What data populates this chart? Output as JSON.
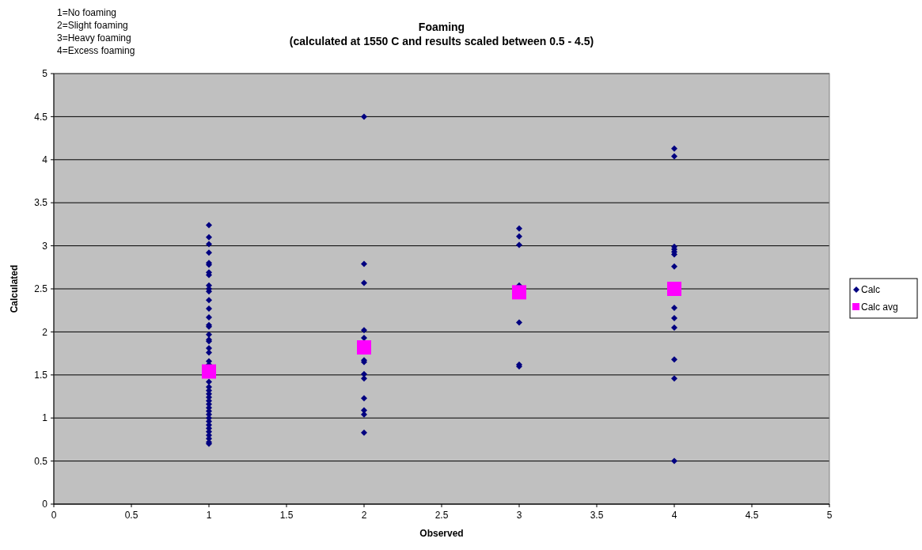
{
  "chart_data": {
    "type": "scatter",
    "title": "Foaming",
    "subtitle": "(calculated at 1550 C and results scaled between 0.5 - 4.5)",
    "xlabel": "Observed",
    "ylabel": "Calculated",
    "annotations": [
      "1=No foaming",
      "2=Slight foaming",
      "3=Heavy foaming",
      "4=Excess foaming"
    ],
    "xlim": [
      0,
      5
    ],
    "xticks": [
      0,
      0.5,
      1,
      1.5,
      2,
      2.5,
      3,
      3.5,
      4,
      4.5,
      5
    ],
    "ylim": [
      0,
      5
    ],
    "yticks": [
      0,
      0.5,
      1,
      1.5,
      2,
      2.5,
      3,
      3.5,
      4,
      4.5,
      5
    ],
    "grid": "y",
    "legend": "right",
    "series": [
      {
        "name": "Calc",
        "color": "#000080",
        "marker": "diamond",
        "x": [
          1,
          1,
          1,
          1,
          1,
          1,
          1,
          1,
          1,
          1,
          1,
          1,
          1,
          1,
          1,
          1,
          1,
          1,
          1,
          1,
          1,
          1,
          1,
          1,
          1,
          1,
          1,
          1,
          1,
          1,
          1,
          1,
          1,
          1,
          1,
          1,
          1,
          1,
          1,
          1,
          1,
          1,
          2,
          2,
          2,
          2,
          2,
          2,
          2,
          2,
          2,
          2,
          2,
          2,
          2,
          3,
          3,
          3,
          3,
          3,
          3,
          3,
          4,
          4,
          4,
          4,
          4,
          4,
          4,
          4,
          4,
          4,
          4,
          4,
          4
        ],
        "values": [
          3.24,
          3.1,
          3.02,
          2.92,
          2.8,
          2.78,
          2.69,
          2.66,
          2.54,
          2.5,
          2.47,
          2.37,
          2.27,
          2.17,
          2.08,
          2.06,
          1.97,
          1.91,
          1.89,
          1.81,
          1.76,
          1.66,
          1.62,
          1.42,
          1.36,
          1.32,
          1.28,
          1.24,
          1.2,
          1.16,
          1.12,
          1.08,
          1.04,
          1,
          0.96,
          0.92,
          0.88,
          0.84,
          0.8,
          0.76,
          0.72,
          0.7,
          4.5,
          2.79,
          2.57,
          2.02,
          1.93,
          1.67,
          1.65,
          1.51,
          1.46,
          1.23,
          1.09,
          1.04,
          0.83,
          3.2,
          3.11,
          3.01,
          2.54,
          2.11,
          1.62,
          1.6,
          4.13,
          4.04,
          2.99,
          2.96,
          2.93,
          2.9,
          2.76,
          2.28,
          2.16,
          2.05,
          1.68,
          1.46,
          0.5
        ]
      },
      {
        "name": "Calc avg",
        "color": "#ff00ff",
        "marker": "square",
        "x": [
          1,
          2,
          3,
          4
        ],
        "values": [
          1.54,
          1.82,
          2.46,
          2.5
        ]
      }
    ]
  }
}
